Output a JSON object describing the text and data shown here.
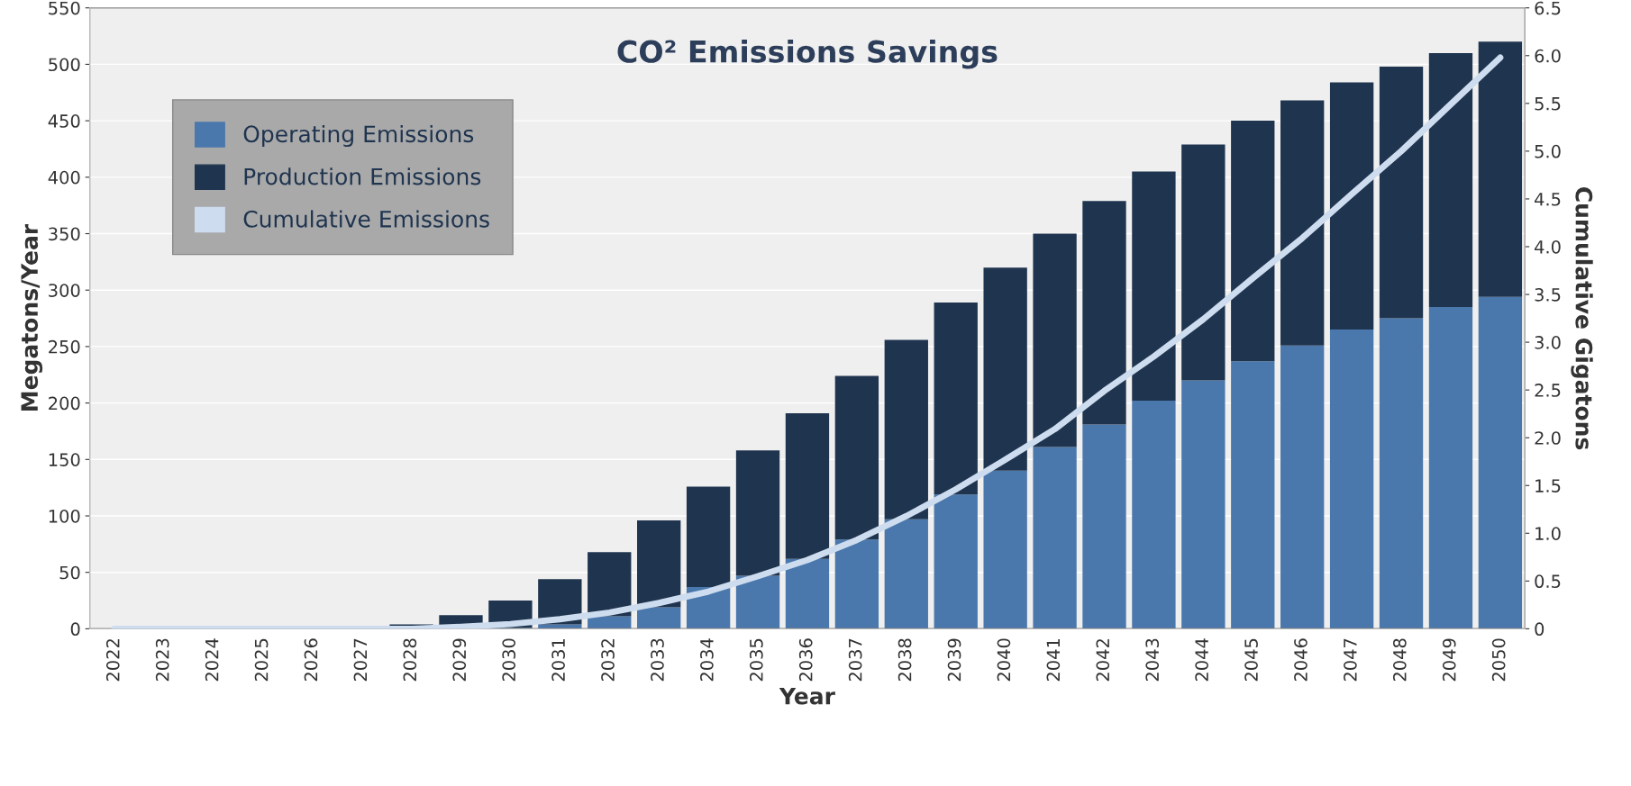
{
  "chart_data": {
    "type": "bar",
    "title": "CO² Emissions Savings",
    "xlabel": "Year",
    "ylabel": "Megatons/Year",
    "y2label": "Cumulative Gigatons",
    "categories": [
      "2022",
      "2023",
      "2024",
      "2025",
      "2026",
      "2027",
      "2028",
      "2029",
      "2030",
      "2031",
      "2032",
      "2033",
      "2034",
      "2035",
      "2036",
      "2037",
      "2038",
      "2039",
      "2040",
      "2041",
      "2042",
      "2043",
      "2044",
      "2045",
      "2046",
      "2047",
      "2048",
      "2049",
      "2050"
    ],
    "stacked": true,
    "series": [
      {
        "name": "Operating Emissions",
        "color": "#4a78ad",
        "values": [
          0,
          0,
          0,
          0,
          0,
          0,
          0,
          0,
          1,
          4,
          11,
          19,
          37,
          47,
          62,
          79,
          97,
          119,
          140,
          161,
          181,
          202,
          220,
          237,
          251,
          265,
          275,
          285,
          294
        ]
      },
      {
        "name": "Production Emissions",
        "color": "#1f344f",
        "values": [
          0,
          0,
          0,
          0,
          0,
          0,
          4,
          12,
          24,
          40,
          57,
          77,
          89,
          111,
          129,
          145,
          159,
          170,
          180,
          189,
          198,
          203,
          209,
          213,
          217,
          219,
          223,
          225,
          226
        ]
      },
      {
        "name": "Cumulative Emissions",
        "color": "#cddcee",
        "type": "line",
        "axis": "y2",
        "values": [
          0,
          0,
          0,
          0,
          0,
          0,
          0,
          0.02,
          0.05,
          0.1,
          0.17,
          0.27,
          0.39,
          0.55,
          0.72,
          0.93,
          1.18,
          1.46,
          1.77,
          2.09,
          2.49,
          2.85,
          3.24,
          3.67,
          4.09,
          4.55,
          5.0,
          5.49,
          5.98
        ]
      }
    ],
    "ylim": [
      0,
      550
    ],
    "yticks": [
      0,
      50,
      100,
      150,
      200,
      250,
      300,
      350,
      400,
      450,
      500,
      550
    ],
    "y2lim": [
      0,
      6.5
    ],
    "y2ticks": [
      0,
      {
        "value": 0.5,
        "label": "0.5"
      },
      {
        "value": 1,
        "label": "1.0"
      },
      {
        "value": 1.5,
        "label": "1.5"
      },
      {
        "value": 2,
        "label": "2.0"
      },
      {
        "value": 2.5,
        "label": "2.5"
      },
      {
        "value": 3,
        "label": "3.0"
      },
      {
        "value": 3.5,
        "label": "3.5"
      },
      {
        "value": 4,
        "label": "4.0"
      },
      {
        "value": 4.5,
        "label": "4.5"
      },
      {
        "value": 5,
        "label": "5.0"
      },
      {
        "value": 5.5,
        "label": "5.5"
      },
      {
        "value": 6,
        "label": "6.0"
      },
      {
        "value": 6.5,
        "label": "6.5"
      }
    ],
    "grid": "y",
    "legend": "top left"
  }
}
